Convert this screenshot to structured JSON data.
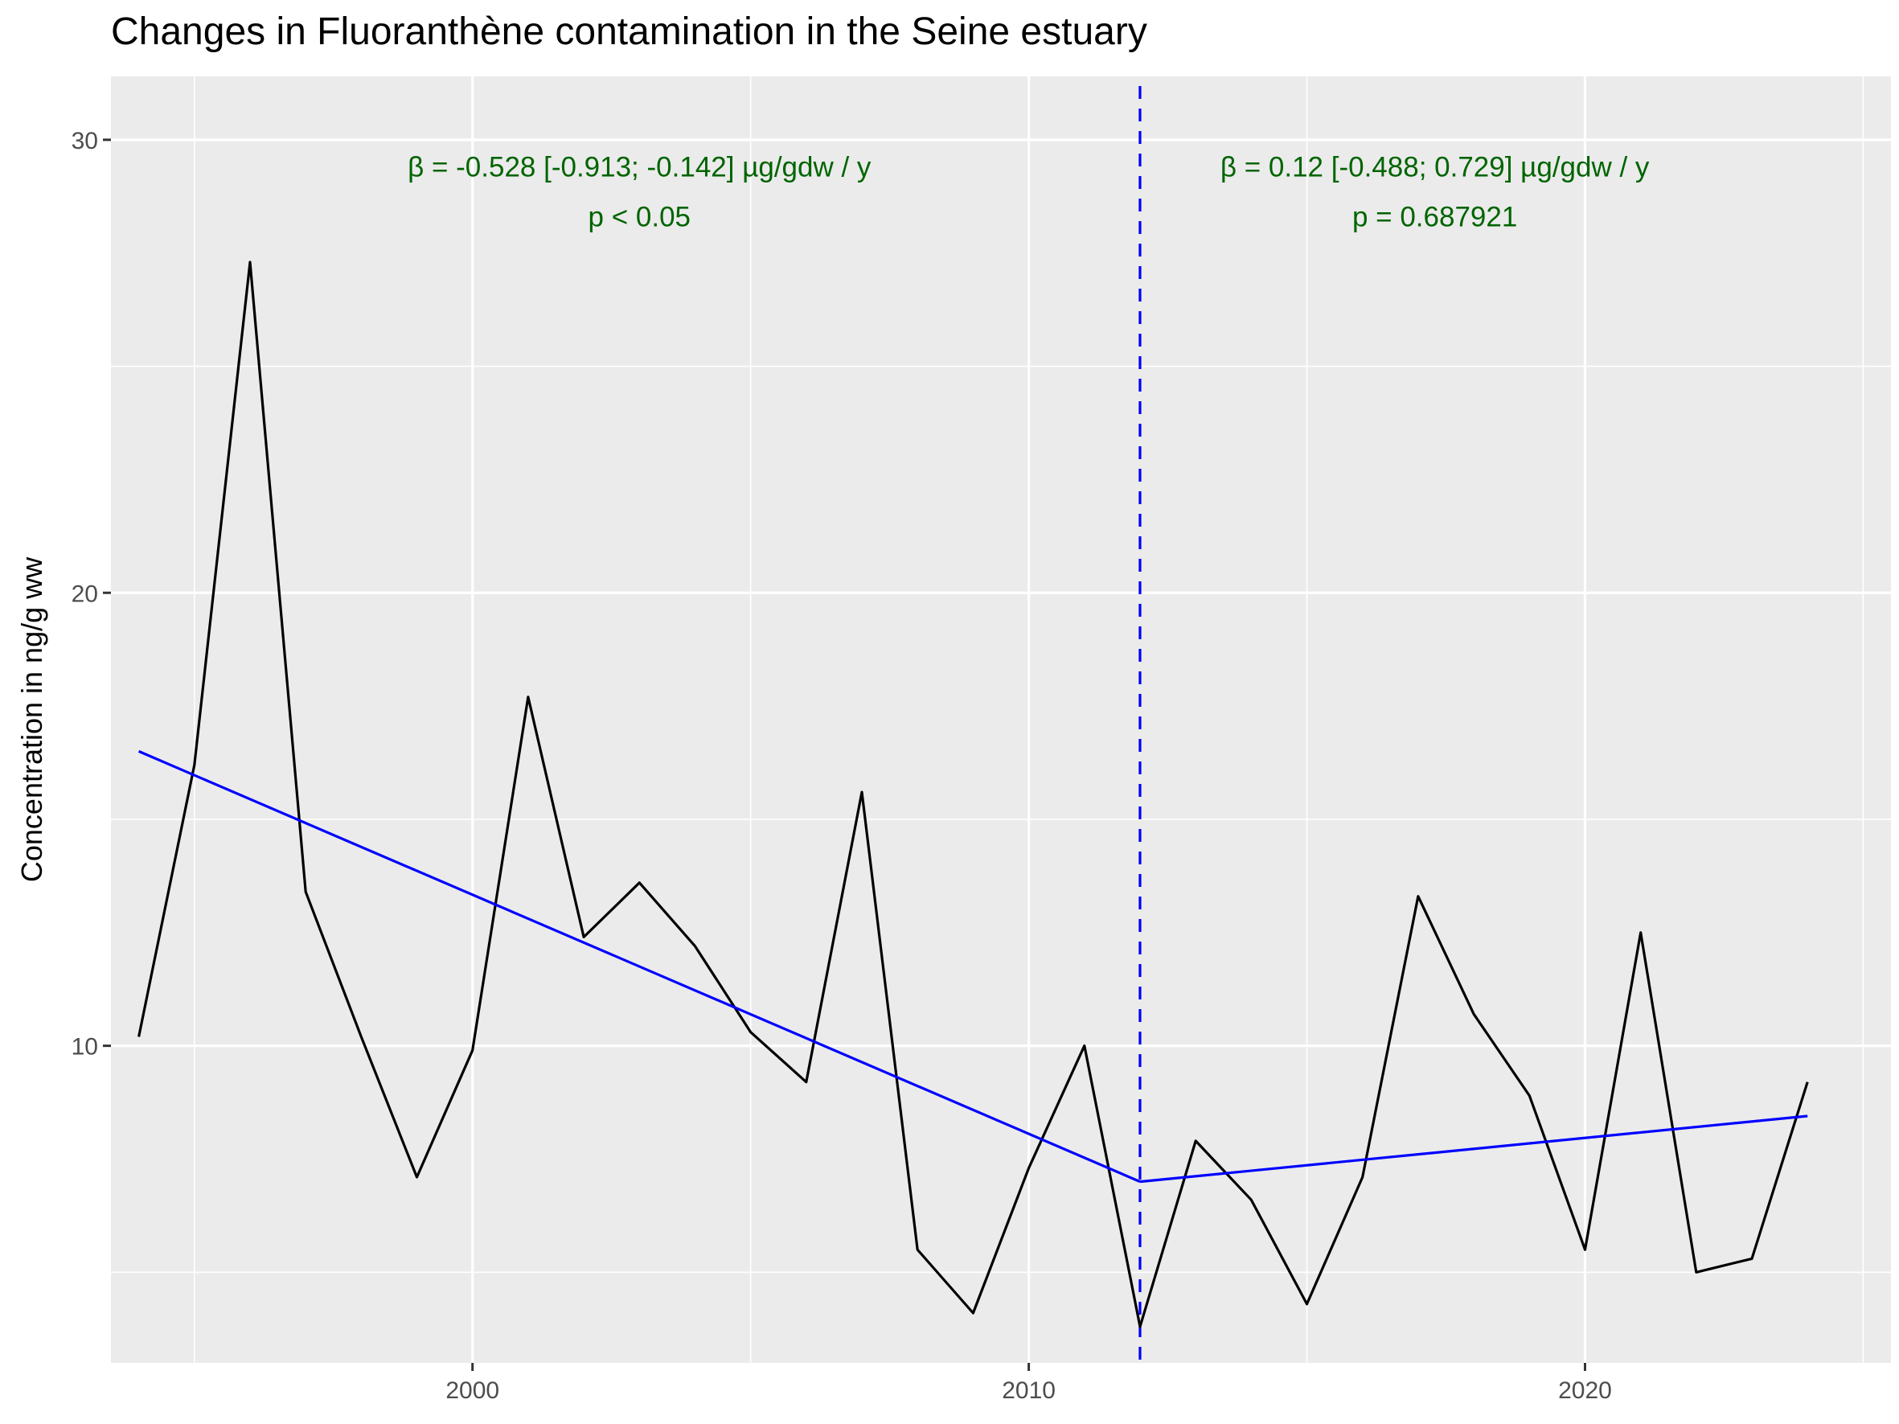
{
  "chart_data": {
    "type": "line",
    "title": "Changes in Fluoranthène contamination in the Seine estuary",
    "xlabel": "",
    "ylabel": "Concentration in ng/g ww",
    "xlim": [
      1993.5,
      2025.5
    ],
    "ylim": [
      3.0,
      31.4
    ],
    "x_ticks": [
      2000,
      2010,
      2020
    ],
    "x_minor_ticks": [
      1995,
      2005,
      2015,
      2025
    ],
    "y_ticks": [
      10,
      20,
      30
    ],
    "y_minor_ticks": [
      5,
      15,
      25
    ],
    "grid": true,
    "series": [
      {
        "x": [
          1994,
          1995,
          1996,
          1997,
          1998,
          1999,
          2000,
          2001,
          2002,
          2003,
          2004,
          2005,
          2006,
          2007,
          2008,
          2009,
          2010,
          2011,
          2012,
          2013,
          2014,
          2015,
          2016,
          2017,
          2018,
          2019,
          2020,
          2021,
          2022,
          2023,
          2024
        ],
        "values": [
          10.2,
          16.2,
          27.3,
          13.4,
          10.2,
          7.1,
          9.9,
          17.7,
          12.4,
          13.6,
          12.2,
          10.3,
          9.2,
          15.6,
          5.5,
          4.1,
          7.3,
          10.0,
          3.8,
          7.9,
          6.6,
          4.3,
          7.1,
          13.3,
          10.7,
          8.9,
          5.5,
          12.5,
          5.0,
          5.3,
          9.2
        ],
        "color": "#000000"
      },
      {
        "x": [
          1994,
          2012
        ],
        "values": [
          16.5,
          7.0
        ],
        "color": "#0000ff"
      },
      {
        "x": [
          2012,
          2024
        ],
        "values": [
          7.0,
          8.45
        ],
        "color": "#0000ff"
      }
    ],
    "breakpoint": {
      "x": 2012,
      "color": "#0000ff",
      "style": "dashed"
    },
    "annotations": [
      {
        "line1": "β = -0.528 [-0.913; -0.142] µg/gdw / y",
        "line2": "p < 0.05",
        "x": 2003,
        "y1": 29.4,
        "y2": 28.3,
        "color": "#006400"
      },
      {
        "line1": "β = 0.12 [-0.488; 0.729] µg/gdw / y",
        "line2": "p = 0.687921",
        "x": 2017.3,
        "y1": 29.4,
        "y2": 28.3,
        "color": "#006400"
      }
    ],
    "colors": {
      "panel": "#ebebeb",
      "grid": "#ffffff",
      "tick_text": "#4d4d4d",
      "tick_mark": "#333333"
    }
  }
}
